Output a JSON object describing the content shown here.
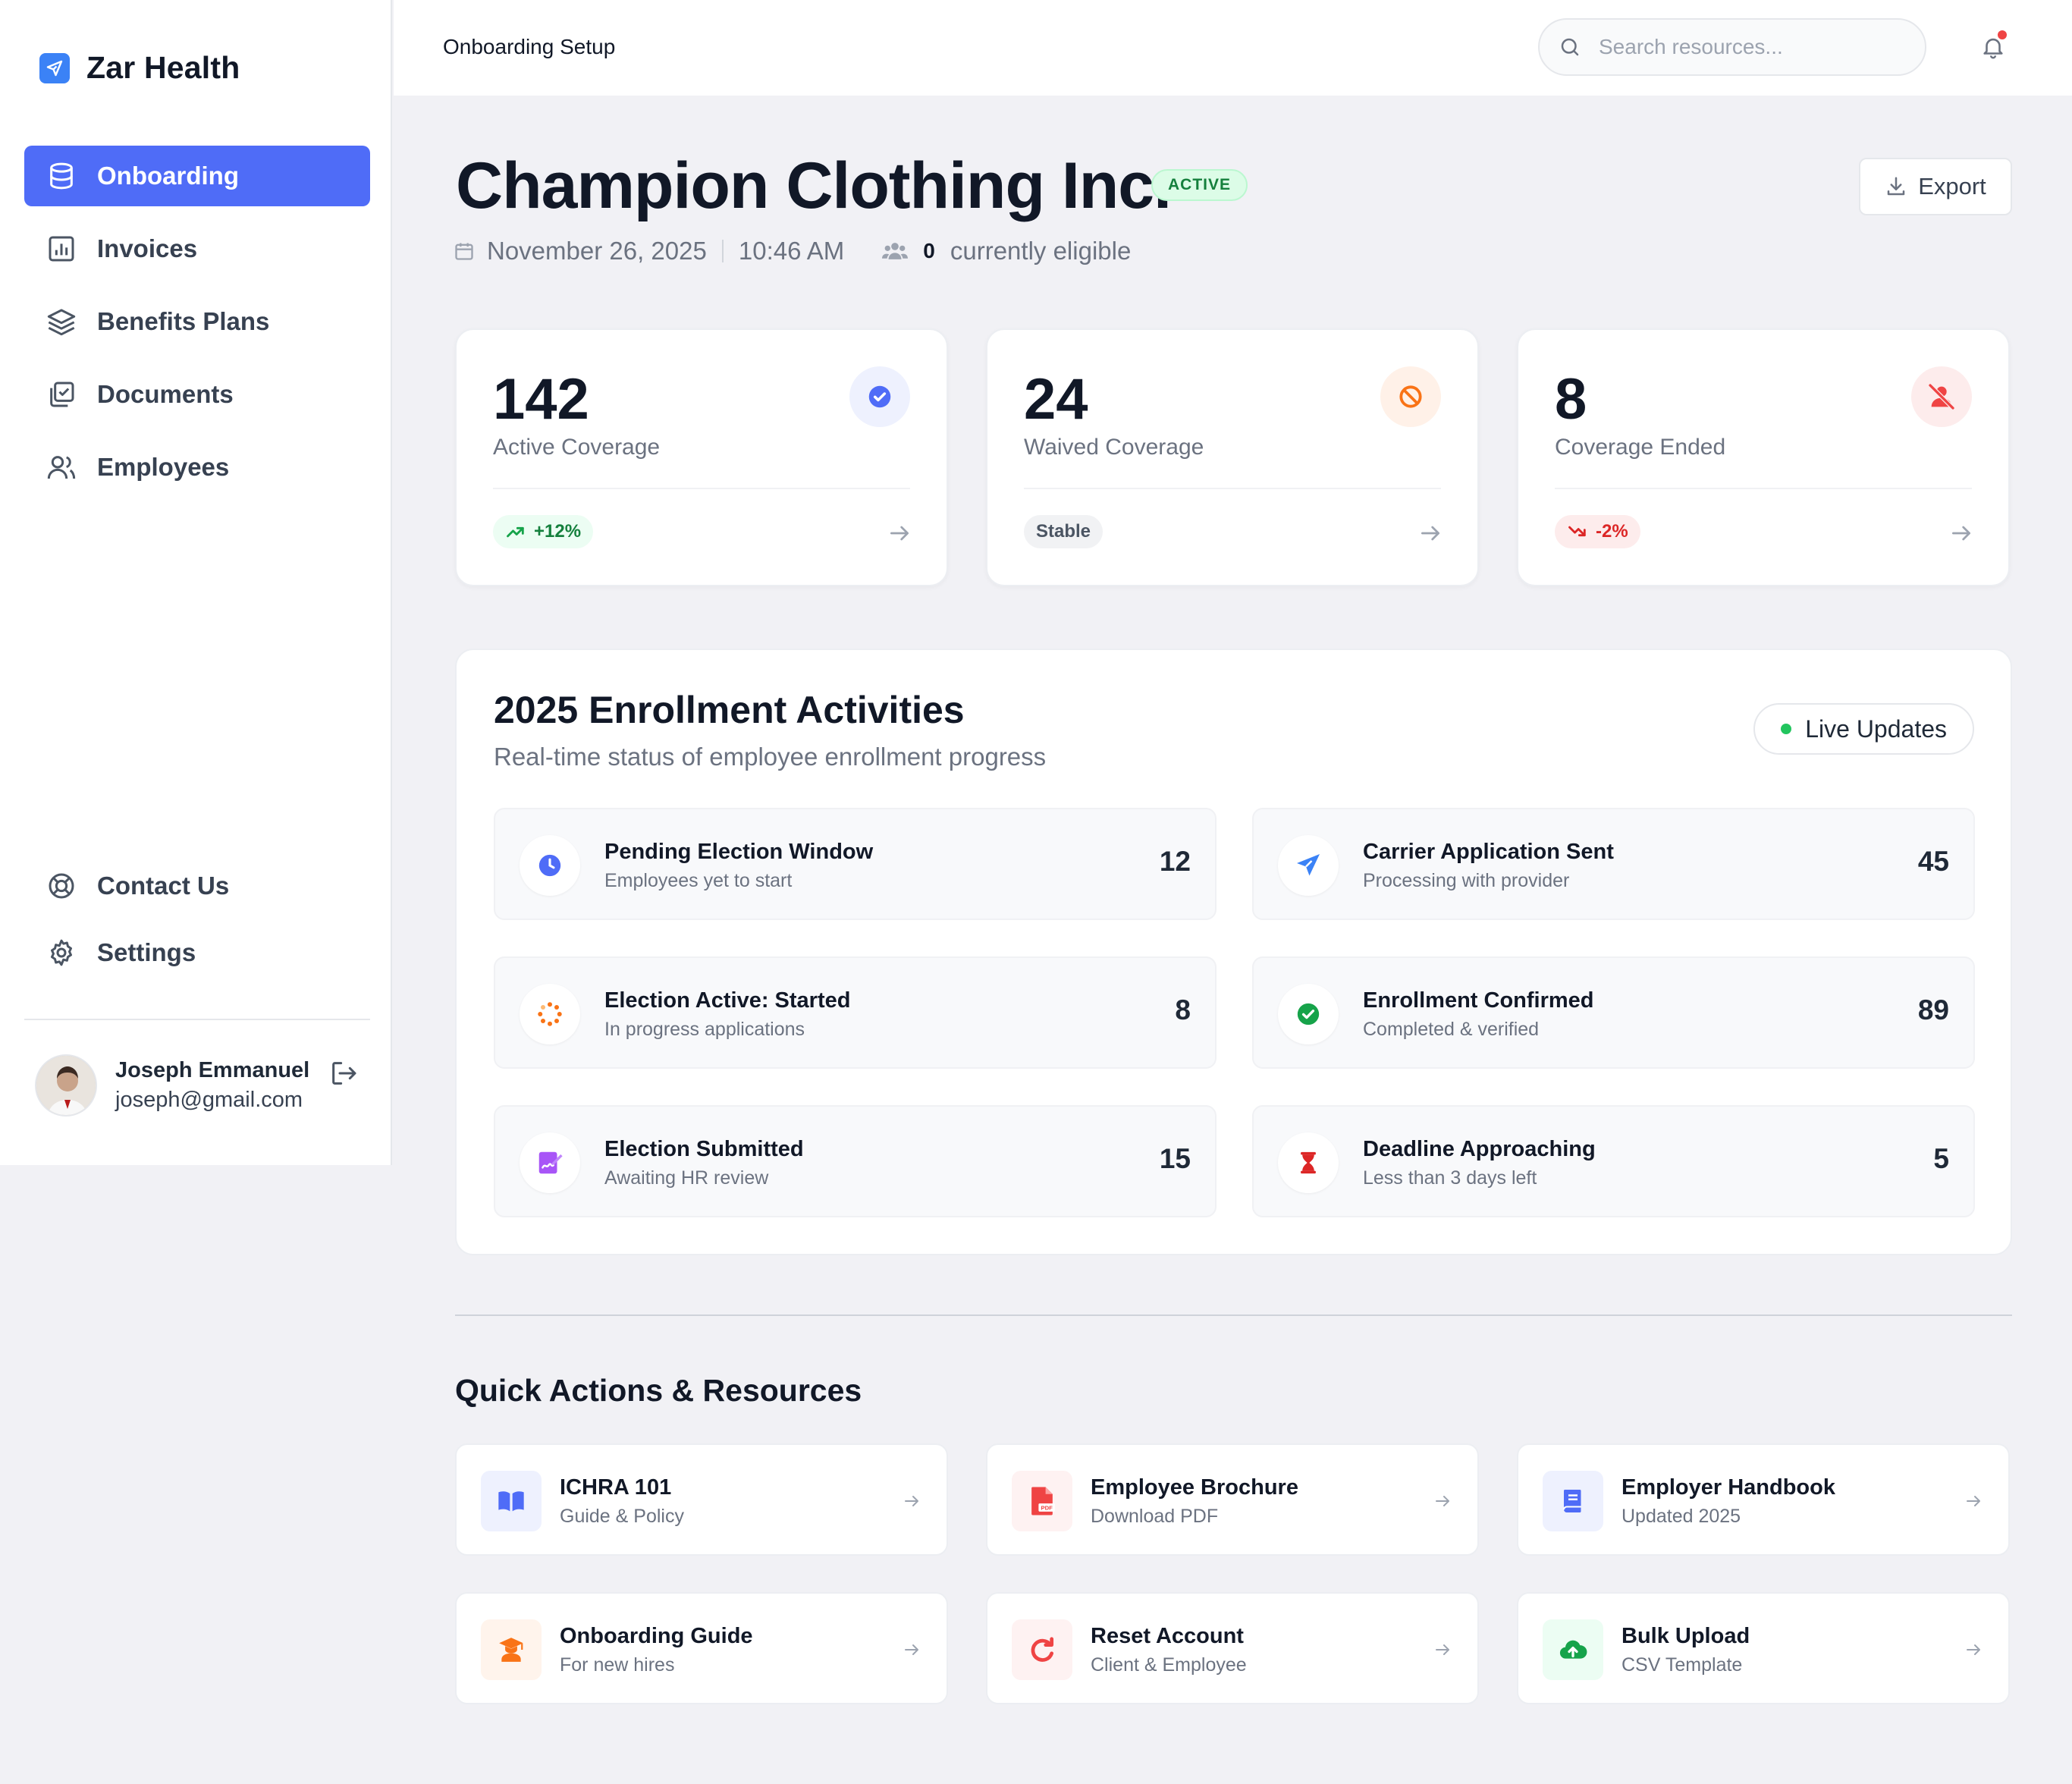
{
  "app": {
    "name": "Zar Health"
  },
  "sidebar": {
    "items": [
      {
        "label": "Onboarding",
        "icon": "database-icon",
        "active": true
      },
      {
        "label": "Invoices",
        "icon": "bar-chart-icon"
      },
      {
        "label": "Benefits Plans",
        "icon": "layers-icon"
      },
      {
        "label": "Documents",
        "icon": "documents-check-icon"
      },
      {
        "label": "Employees",
        "icon": "users-icon"
      }
    ],
    "bottom_items": [
      {
        "label": "Contact Us",
        "icon": "lifebuoy-icon"
      },
      {
        "label": "Settings",
        "icon": "gear-icon"
      }
    ],
    "user": {
      "name": "Joseph Emmanuel",
      "email": "joseph@gmail.com"
    }
  },
  "topbar": {
    "title": "Onboarding Setup",
    "search_placeholder": "Search resources...",
    "has_notification": true
  },
  "header": {
    "company": "Champion Clothing Inc.",
    "status": "ACTIVE",
    "date": "November 26, 2025",
    "time": "10:46 AM",
    "eligible_count": "0",
    "eligible_label": "currently eligible",
    "export_label": "Export"
  },
  "stats": [
    {
      "value": "142",
      "label": "Active Coverage",
      "badge": "+12%",
      "badge_type": "up",
      "icon": "check-circle-icon",
      "accent": "#4f6cf7"
    },
    {
      "value": "24",
      "label": "Waived Coverage",
      "badge": "Stable",
      "badge_type": "neutral",
      "icon": "ban-icon",
      "accent": "#f97316"
    },
    {
      "value": "8",
      "label": "Coverage Ended",
      "badge": "-2%",
      "badge_type": "down",
      "icon": "user-off-icon",
      "accent": "#ef4444"
    }
  ],
  "enrollment": {
    "title": "2025 Enrollment Activities",
    "subtitle": "Real-time status of employee enrollment progress",
    "live_label": "Live Updates",
    "activities": [
      {
        "title": "Pending Election Window",
        "sub": "Employees yet to start",
        "count": "12",
        "icon": "clock-icon",
        "color": "#4f6cf7"
      },
      {
        "title": "Carrier Application Sent",
        "sub": "Processing with provider",
        "count": "45",
        "icon": "send-icon",
        "color": "#3b82f6"
      },
      {
        "title": "Election Active: Started",
        "sub": "In progress applications",
        "count": "8",
        "icon": "spinner-icon",
        "color": "#f97316"
      },
      {
        "title": "Enrollment Confirmed",
        "sub": "Completed & verified",
        "count": "89",
        "icon": "check-circle-icon",
        "color": "#16a34a"
      },
      {
        "title": "Election Submitted",
        "sub": "Awaiting HR review",
        "count": "15",
        "icon": "signature-icon",
        "color": "#a855f7"
      },
      {
        "title": "Deadline Approaching",
        "sub": "Less than 3 days left",
        "count": "5",
        "icon": "hourglass-icon",
        "color": "#ef4444"
      }
    ]
  },
  "quick_actions": {
    "title": "Quick Actions & Resources",
    "items": [
      {
        "name": "ICHRA 101",
        "sub": "Guide & Policy",
        "icon": "book-open-icon",
        "color": "#4f6cf7",
        "bg": "#eef1fe"
      },
      {
        "name": "Employee Brochure",
        "sub": "Download PDF",
        "icon": "pdf-icon",
        "color": "#ef4444",
        "bg": "#fef2f2"
      },
      {
        "name": "Employer Handbook",
        "sub": "Updated 2025",
        "icon": "book-icon",
        "color": "#4f6cf7",
        "bg": "#eef1fe"
      },
      {
        "name": "Onboarding Guide",
        "sub": "For new hires",
        "icon": "graduate-icon",
        "color": "#f97316",
        "bg": "#fff4ec"
      },
      {
        "name": "Reset Account",
        "sub": "Client & Employee",
        "icon": "reset-icon",
        "color": "#ef4444",
        "bg": "#fef2f2"
      },
      {
        "name": "Bulk Upload",
        "sub": "CSV Template",
        "icon": "cloud-upload-icon",
        "color": "#16a34a",
        "bg": "#ecfdf3"
      }
    ]
  }
}
